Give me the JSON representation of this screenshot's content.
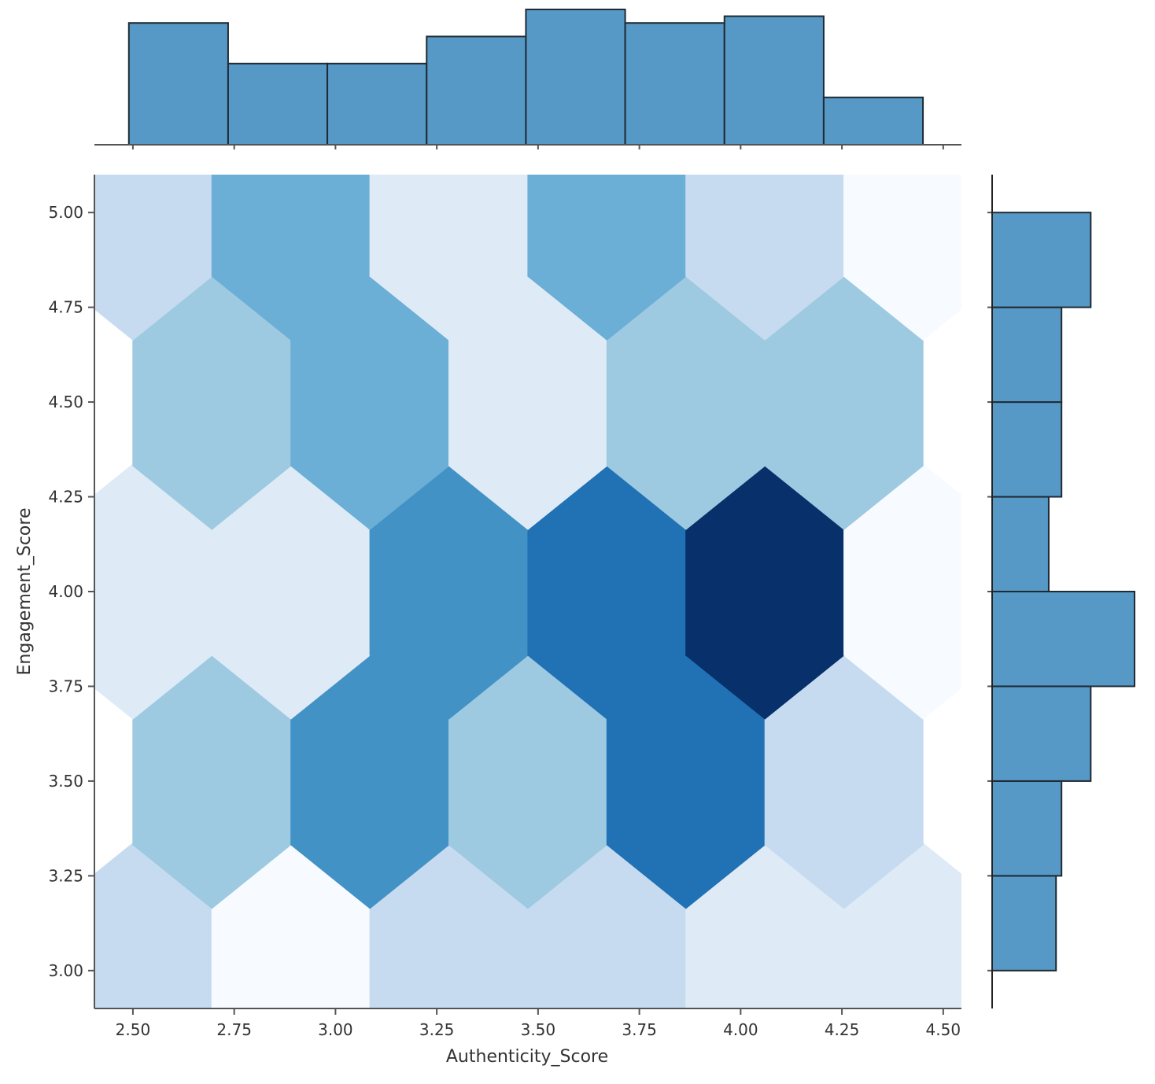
{
  "colors": {
    "bar_fill": "#5698c6",
    "bar_edge": "#1f2a33",
    "axis": "#555555",
    "cmap": [
      "#f7fbff",
      "#deebf7",
      "#c6dbef",
      "#9ecae1",
      "#6baed6",
      "#4292c6",
      "#2171b5",
      "#08306b"
    ]
  },
  "chart_data": {
    "type": "jointplot-hexbin",
    "xlabel": "Authenticity_Score",
    "ylabel": "Engagement_Score",
    "xlim": [
      2.405,
      4.545
    ],
    "ylim": [
      2.9,
      5.1
    ],
    "x_ticks": [
      2.5,
      2.75,
      3.0,
      3.25,
      3.5,
      3.75,
      4.0,
      4.25,
      4.5
    ],
    "x_tick_labels": [
      "2.50",
      "2.75",
      "3.00",
      "3.25",
      "3.50",
      "3.75",
      "4.00",
      "4.25",
      "4.50"
    ],
    "y_ticks": [
      3.0,
      3.25,
      3.5,
      3.75,
      4.0,
      4.25,
      4.5,
      4.75,
      5.0
    ],
    "y_tick_labels": [
      "3.00",
      "3.25",
      "3.50",
      "3.75",
      "4.00",
      "4.25",
      "4.50",
      "4.75",
      "5.00"
    ],
    "hexbin": {
      "colormap": "Blues",
      "grid": {
        "x_centers_row_a": [
          2.5,
          2.89,
          3.28,
          3.67,
          4.06,
          4.45
        ],
        "y_rows_a": [
          3.0,
          4.0,
          5.0
        ],
        "y_rows_b": [
          3.5,
          4.5
        ]
      },
      "cells": [
        {
          "x": 2.5,
          "y": 3.0,
          "level": 2
        },
        {
          "x": 2.89,
          "y": 3.0,
          "level": 0
        },
        {
          "x": 3.28,
          "y": 3.0,
          "level": 2
        },
        {
          "x": 3.67,
          "y": 3.0,
          "level": 2
        },
        {
          "x": 4.06,
          "y": 3.0,
          "level": 1
        },
        {
          "x": 4.45,
          "y": 3.0,
          "level": 1
        },
        {
          "x": 2.695,
          "y": 3.5,
          "level": 3
        },
        {
          "x": 3.085,
          "y": 3.5,
          "level": 5
        },
        {
          "x": 3.475,
          "y": 3.5,
          "level": 3
        },
        {
          "x": 3.865,
          "y": 3.5,
          "level": 6
        },
        {
          "x": 4.255,
          "y": 3.5,
          "level": 2
        },
        {
          "x": 2.5,
          "y": 4.0,
          "level": 1
        },
        {
          "x": 2.89,
          "y": 4.0,
          "level": 1
        },
        {
          "x": 3.28,
          "y": 4.0,
          "level": 5
        },
        {
          "x": 3.67,
          "y": 4.0,
          "level": 6
        },
        {
          "x": 4.06,
          "y": 4.0,
          "level": 7
        },
        {
          "x": 4.45,
          "y": 4.0,
          "level": 0
        },
        {
          "x": 2.695,
          "y": 4.5,
          "level": 3
        },
        {
          "x": 3.085,
          "y": 4.5,
          "level": 4
        },
        {
          "x": 3.475,
          "y": 4.5,
          "level": 1
        },
        {
          "x": 3.865,
          "y": 4.5,
          "level": 3
        },
        {
          "x": 4.255,
          "y": 4.5,
          "level": 3
        },
        {
          "x": 2.5,
          "y": 5.0,
          "level": 2
        },
        {
          "x": 2.89,
          "y": 5.0,
          "level": 4
        },
        {
          "x": 3.28,
          "y": 5.0,
          "level": 1
        },
        {
          "x": 3.67,
          "y": 5.0,
          "level": 4
        },
        {
          "x": 4.06,
          "y": 5.0,
          "level": 2
        },
        {
          "x": 4.45,
          "y": 5.0,
          "level": 0
        }
      ]
    },
    "top_histogram": {
      "bin_edges": [
        2.49,
        2.735,
        2.98,
        3.225,
        3.47,
        3.715,
        3.96,
        4.205,
        4.45
      ],
      "counts": [
        9,
        6,
        6,
        8,
        10,
        9,
        9.5,
        3.5
      ]
    },
    "right_histogram": {
      "bin_edges": [
        3.0,
        3.25,
        3.5,
        3.75,
        4.0,
        4.25,
        4.5,
        4.75,
        5.0
      ],
      "counts": [
        7,
        7.6,
        10.8,
        15.6,
        6.2,
        7.6,
        7.6,
        10.8
      ]
    }
  }
}
